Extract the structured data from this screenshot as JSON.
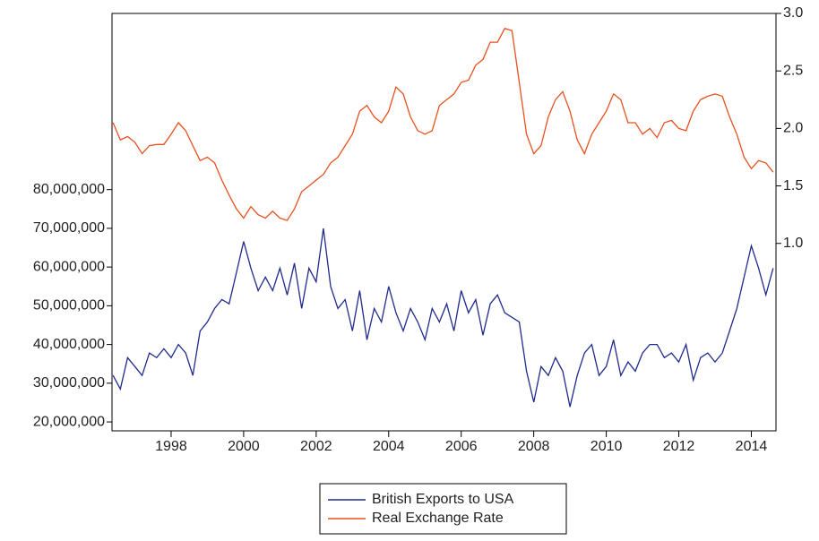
{
  "chart_data": {
    "type": "line",
    "x": [
      1996.4,
      1996.6,
      1996.8,
      1997,
      1997.2,
      1997.4,
      1997.6,
      1997.8,
      1998,
      1998.2,
      1998.4,
      1998.6,
      1998.8,
      1999,
      1999.2,
      1999.4,
      1999.6,
      1999.8,
      2000,
      2000.2,
      2000.4,
      2000.6,
      2000.8,
      2001,
      2001.2,
      2001.4,
      2001.6,
      2001.8,
      2002,
      2002.2,
      2002.4,
      2002.6,
      2002.8,
      2003,
      2003.2,
      2003.4,
      2003.6,
      2003.8,
      2004,
      2004.2,
      2004.4,
      2004.6,
      2004.8,
      2005,
      2005.2,
      2005.4,
      2005.6,
      2005.8,
      2006,
      2006.2,
      2006.4,
      2006.6,
      2006.8,
      2007,
      2007.2,
      2007.4,
      2007.6,
      2007.8,
      2008,
      2008.2,
      2008.4,
      2008.6,
      2008.8,
      2009,
      2009.2,
      2009.4,
      2009.6,
      2009.8,
      2010,
      2010.2,
      2010.4,
      2010.6,
      2010.8,
      2011,
      2011.2,
      2011.4,
      2011.6,
      2011.8,
      2012,
      2012.2,
      2012.4,
      2012.6,
      2012.8,
      2013,
      2013.2,
      2013.4,
      2013.6,
      2013.8,
      2014,
      2014.2,
      2014.4,
      2014.6
    ],
    "series": [
      {
        "name": "British Exports to USA",
        "color": "#1f2a8c",
        "values": [
          32000000,
          28500000,
          36600000,
          34300000,
          32000000,
          37800000,
          36600000,
          38900000,
          36600000,
          40000000,
          37800000,
          32000000,
          43500000,
          45800000,
          49300000,
          51600000,
          50500000,
          58500000,
          66600000,
          59700000,
          53900000,
          57400000,
          53900000,
          59700000,
          52800000,
          61000000,
          49300000,
          59700000,
          56200000,
          70000000,
          55000000,
          49300000,
          51600000,
          43500000,
          53900000,
          41200000,
          49300000,
          45800000,
          55000000,
          48200000,
          43500000,
          49300000,
          45800000,
          41200000,
          49300000,
          45800000,
          50500000,
          43500000,
          53900000,
          48200000,
          51600000,
          42400000,
          50500000,
          52800000,
          48200000,
          47000000,
          45800000,
          33100000,
          25100000,
          34300000,
          32000000,
          36600000,
          33100000,
          23900000,
          32000000,
          37800000,
          40000000,
          32000000,
          34300000,
          41200000,
          32000000,
          35500000,
          33100000,
          37800000,
          40000000,
          40000000,
          36600000,
          37800000,
          35500000,
          40000000,
          30800000,
          36600000,
          37800000,
          35500000,
          37800000,
          43500000,
          49300000,
          57400000,
          65500000,
          59700000,
          52800000,
          59700000
        ]
      },
      {
        "name": "Real Exchange Rate",
        "color": "#e8501e",
        "axis": "y2",
        "values": [
          2.05,
          1.9,
          1.93,
          1.88,
          1.78,
          1.85,
          1.86,
          1.86,
          1.95,
          2.05,
          1.98,
          1.85,
          1.72,
          1.75,
          1.7,
          1.55,
          1.42,
          1.3,
          1.22,
          1.32,
          1.25,
          1.22,
          1.28,
          1.22,
          1.2,
          1.3,
          1.45,
          1.5,
          1.55,
          1.6,
          1.7,
          1.75,
          1.85,
          1.95,
          2.15,
          2.2,
          2.1,
          2.05,
          2.15,
          2.36,
          2.3,
          2.1,
          1.98,
          1.95,
          1.98,
          2.2,
          2.25,
          2.3,
          2.4,
          2.42,
          2.55,
          2.6,
          2.75,
          2.75,
          2.87,
          2.85,
          2.4,
          1.95,
          1.78,
          1.85,
          2.1,
          2.25,
          2.32,
          2.15,
          1.9,
          1.78,
          1.95,
          2.05,
          2.15,
          2.3,
          2.25,
          2.05,
          2.05,
          1.95,
          2.0,
          1.92,
          2.05,
          2.07,
          2.0,
          1.98,
          2.15,
          2.25,
          2.28,
          2.3,
          2.28,
          2.1,
          1.95,
          1.75,
          1.65,
          1.72,
          1.7,
          1.62
        ]
      }
    ],
    "xlim": [
      1996.37,
      2014.68
    ],
    "xticks": [
      1998,
      2000,
      2002,
      2004,
      2006,
      2008,
      2010,
      2012,
      2014
    ],
    "ylim": [
      17700000,
      125500000
    ],
    "yticks": [
      {
        "value": 20000000,
        "label": "20,000,000"
      },
      {
        "value": 30000000,
        "label": "30,000,000"
      },
      {
        "value": 40000000,
        "label": "40,000,000"
      },
      {
        "value": 50000000,
        "label": "50,000,000"
      },
      {
        "value": 60000000,
        "label": "60,000,000"
      },
      {
        "value": 70000000,
        "label": "70,000,000"
      },
      {
        "value": 80000000,
        "label": "80,000,000"
      }
    ],
    "y2lim": [
      -0.63,
      3.0
    ],
    "y2ticks": [
      {
        "value": 1,
        "label": "1.0"
      },
      {
        "value": 1.5,
        "label": "1.5"
      },
      {
        "value": 2,
        "label": "2.0"
      },
      2.5,
      {
        "value": 3,
        "label": "3.0"
      }
    ],
    "legend": "bottom"
  }
}
